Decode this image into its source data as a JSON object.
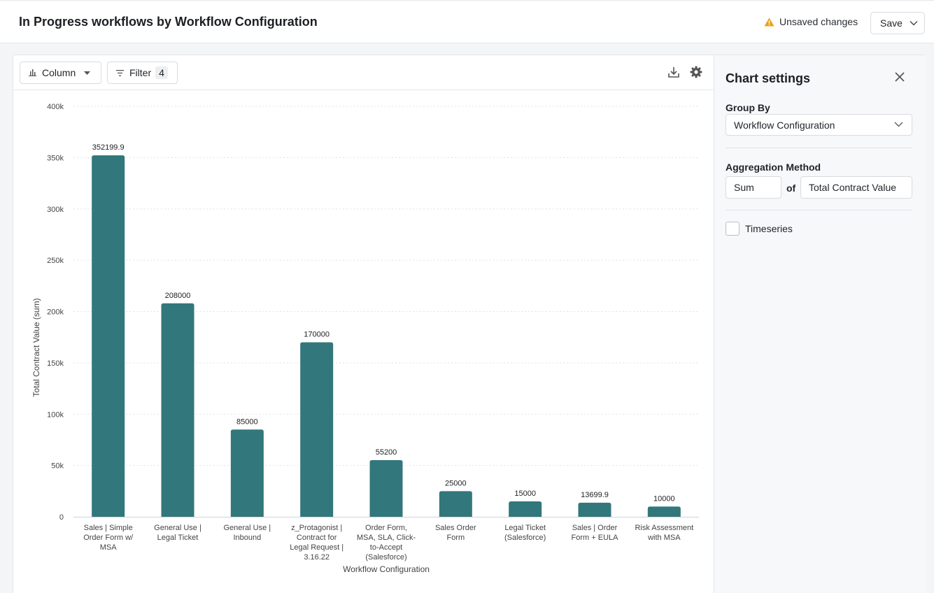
{
  "header": {
    "title": "In Progress workflows by Workflow Configuration",
    "unsaved_label": "Unsaved changes",
    "save_label": "Save"
  },
  "toolbar": {
    "chart_type_label": "Column",
    "filter_label": "Filter",
    "filter_count": "4",
    "icons": [
      "column-chart-icon",
      "filter-icon",
      "download-icon",
      "gear-icon"
    ]
  },
  "settings": {
    "title": "Chart settings",
    "group_by_label": "Group By",
    "group_by_value": "Workflow Configuration",
    "aggregation_label": "Aggregation Method",
    "aggregation_method": "Sum",
    "of_label": "of",
    "aggregation_field": "Total Contract Value",
    "timeseries_label": "Timeseries",
    "timeseries_checked": false
  },
  "colors": {
    "bar": "#32777b",
    "warning": "#e8a21a"
  },
  "chart_data": {
    "type": "bar",
    "categories": [
      "Sales | Simple Order Form w/ MSA",
      "General Use | Legal Ticket",
      "General Use | Inbound",
      "z_Protagonist | Contract for Legal Request | 3.16.22",
      "Order Form, MSA, SLA, Click-to-Accept (Salesforce)",
      "Sales Order Form",
      "Legal Ticket (Salesforce)",
      "Sales | Order Form + EULA",
      "Risk Assessment with MSA"
    ],
    "category_lines": [
      [
        "Sales | Simple",
        "Order Form w/",
        "MSA"
      ],
      [
        "General Use |",
        "Legal Ticket"
      ],
      [
        "General Use |",
        "Inbound"
      ],
      [
        "z_Protagonist |",
        "Contract for",
        "Legal Request |",
        "3.16.22"
      ],
      [
        "Order Form,",
        "MSA, SLA, Click-",
        "to-Accept",
        "(Salesforce)"
      ],
      [
        "Sales Order",
        "Form"
      ],
      [
        "Legal Ticket",
        "(Salesforce)"
      ],
      [
        "Sales | Order",
        "Form + EULA"
      ],
      [
        "Risk Assessment",
        "with MSA"
      ]
    ],
    "values": [
      352199.9,
      208000,
      85000,
      170000,
      55200,
      25000,
      15000,
      13699.9,
      10000
    ],
    "data_labels": [
      "352199.9",
      "208000",
      "85000",
      "170000",
      "55200",
      "25000",
      "15000",
      "13699.9",
      "10000"
    ],
    "yticks": [
      0,
      50000,
      100000,
      150000,
      200000,
      250000,
      300000,
      350000,
      400000
    ],
    "ytick_labels": [
      "0",
      "50k",
      "100k",
      "150k",
      "200k",
      "250k",
      "300k",
      "350k",
      "400k"
    ],
    "ylim": [
      0,
      400000
    ],
    "xlabel": "Workflow Configuration",
    "ylabel": "Total Contract Value (sum)",
    "grid": true
  }
}
